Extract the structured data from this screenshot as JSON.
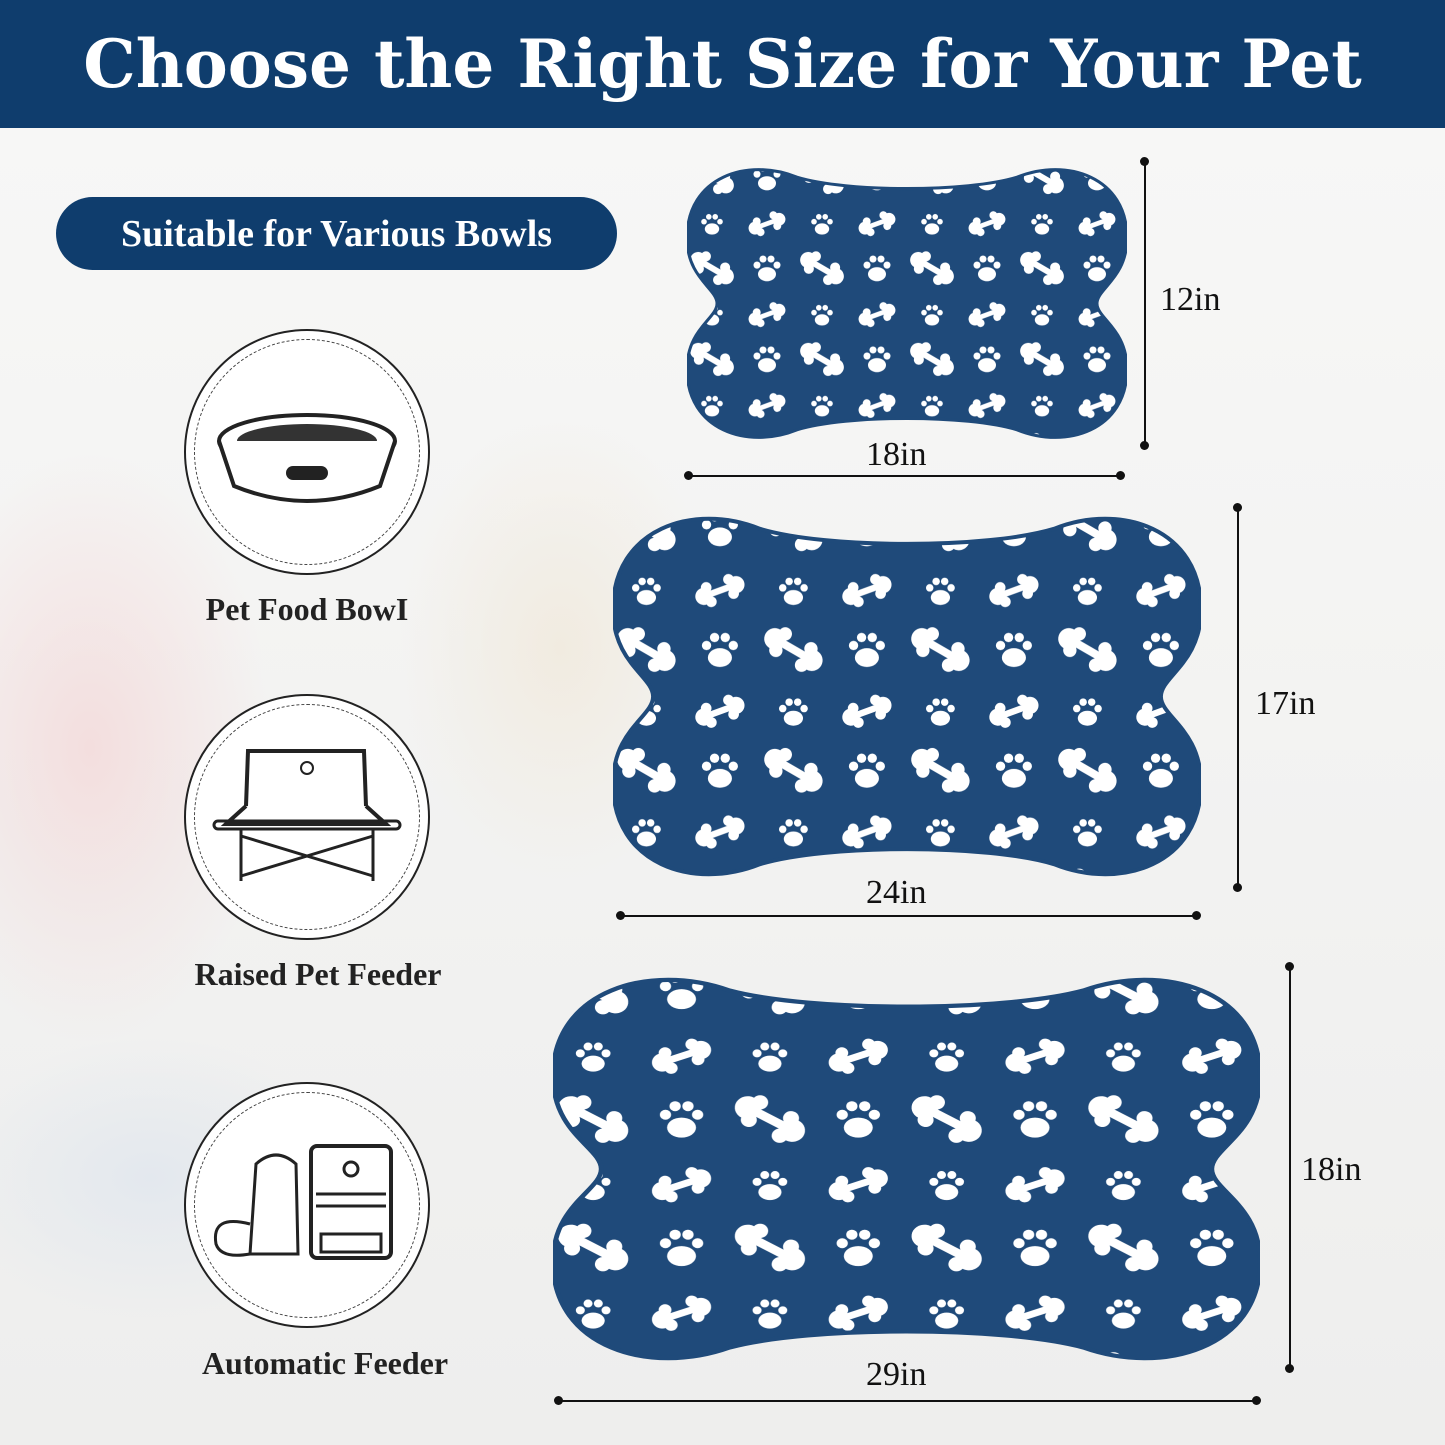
{
  "title": "Choose the Right Size for Your Pet",
  "badge": "Suitable for Various Bowls",
  "colors": {
    "brand": "#0f3d6d",
    "mat": "#1f4a7a"
  },
  "bowl_types": [
    {
      "label": "Pet Food BowI",
      "icon": "food-bowl-icon"
    },
    {
      "label": "Raised Pet Feeder",
      "icon": "raised-feeder-icon"
    },
    {
      "label": "Automatic Feeder",
      "icon": "automatic-feeder-icon"
    }
  ],
  "sizes": [
    {
      "width": "18in",
      "height": "12in"
    },
    {
      "width": "24in",
      "height": "17in"
    },
    {
      "width": "29in",
      "height": "18in"
    }
  ]
}
